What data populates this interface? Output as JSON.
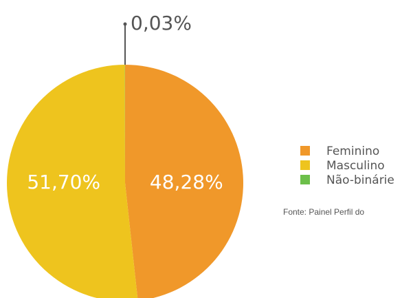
{
  "chart_data": {
    "type": "pie",
    "categories": [
      "Feminino",
      "Masculino",
      "Não-binárie"
    ],
    "values": [
      48.28,
      51.7,
      0.03
    ],
    "value_labels": [
      "48,28%",
      "51,70%",
      "0,03%"
    ],
    "colors": [
      "#f0982a",
      "#eec41e",
      "#6cbf4a"
    ],
    "source": "Fonte: Painel Perfil do"
  }
}
